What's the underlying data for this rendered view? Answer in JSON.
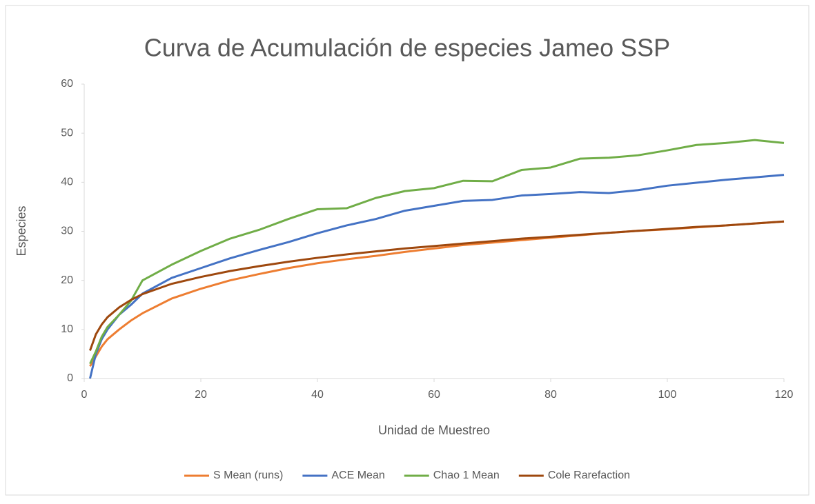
{
  "chart_data": {
    "type": "line",
    "title": "Curva de Acumulación de especies Jameo SSP",
    "x_label": "Unidad de Muestreo",
    "y_label": "Especies",
    "x": [
      1,
      2,
      3,
      4,
      6,
      8,
      10,
      15,
      20,
      25,
      30,
      35,
      40,
      45,
      50,
      55,
      60,
      65,
      70,
      75,
      80,
      85,
      90,
      95,
      100,
      105,
      110,
      115,
      120
    ],
    "series": [
      {
        "name": "S Mean (runs)",
        "color": "#ed7d31",
        "values": [
          2.5,
          4.5,
          6.5,
          8,
          10,
          11.8,
          13.3,
          16.3,
          18.3,
          20,
          21.3,
          22.5,
          23.5,
          24.3,
          25,
          25.8,
          26.5,
          27.2,
          27.7,
          28.2,
          28.7,
          29.2,
          29.7,
          30.1,
          30.4,
          30.8,
          31.2,
          31.6,
          32
        ]
      },
      {
        "name": "ACE Mean",
        "color": "#4472c4",
        "values": [
          0,
          5,
          8,
          10,
          13,
          15,
          17.3,
          20.5,
          22.5,
          24.5,
          26.2,
          27.8,
          29.6,
          31.2,
          32.5,
          34.2,
          35.2,
          36.2,
          36.4,
          37.3,
          37.6,
          38,
          37.8,
          38.4,
          39.3,
          39.9,
          40.5,
          41,
          41.5
        ]
      },
      {
        "name": "Chao 1 Mean",
        "color": "#70ad47",
        "values": [
          3,
          5.5,
          8.5,
          10.5,
          13,
          15.8,
          20,
          23.2,
          26,
          28.5,
          30.3,
          32.5,
          34.5,
          34.7,
          36.8,
          38.2,
          38.8,
          40.3,
          40.2,
          42.5,
          43,
          44.8,
          45,
          45.5,
          46.5,
          47.6,
          48,
          48.6,
          48
        ]
      },
      {
        "name": "Cole Rarefaction",
        "color": "#9e480e",
        "values": [
          5.7,
          9,
          11,
          12.5,
          14.5,
          16,
          17.2,
          19.3,
          20.7,
          21.9,
          22.9,
          23.8,
          24.6,
          25.3,
          25.9,
          26.5,
          27,
          27.5,
          28,
          28.5,
          28.9,
          29.3,
          29.7,
          30.1,
          30.5,
          30.9,
          31.2,
          31.6,
          32
        ]
      }
    ],
    "xlim": [
      0,
      120
    ],
    "xticks": [
      0,
      20,
      40,
      60,
      80,
      100,
      120
    ],
    "ylim": [
      0,
      60
    ],
    "yticks": [
      0,
      10,
      20,
      30,
      40,
      50,
      60
    ],
    "grid": false,
    "legend": "bottom"
  }
}
